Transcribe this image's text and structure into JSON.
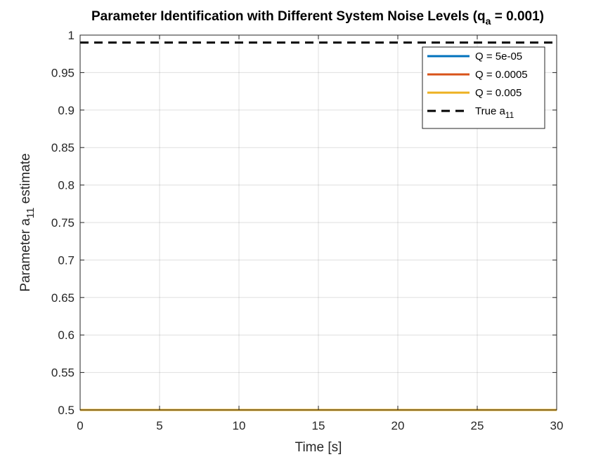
{
  "chart_data": {
    "type": "line",
    "title": "Parameter Identification with Different System Noise Levels (q",
    "title_sub": "a",
    "title_tail": " = 0.001)",
    "xlabel": "Time [s]",
    "ylabel": "Parameter a",
    "ylabel_sub": "11",
    "ylabel_tail": " estimate",
    "xlim": [
      0,
      30
    ],
    "ylim": [
      0.5,
      1
    ],
    "xticks": [
      0,
      5,
      10,
      15,
      20,
      25,
      30
    ],
    "xtick_labels": [
      "0",
      "5",
      "10",
      "15",
      "20",
      "25",
      "30"
    ],
    "yticks": [
      0.5,
      0.55,
      0.6,
      0.65,
      0.7,
      0.75,
      0.8,
      0.85,
      0.9,
      0.95,
      1
    ],
    "ytick_labels": [
      "0.5",
      "0.55",
      "0.6",
      "0.65",
      "0.7",
      "0.75",
      "0.8",
      "0.85",
      "0.9",
      "0.95",
      "1"
    ],
    "grid": true,
    "legend_position": "top-right",
    "series": [
      {
        "name": "Q = 5e-05",
        "color": "#0072BD",
        "style": "solid",
        "x": [
          0,
          30
        ],
        "y": [
          0.5,
          0.5
        ]
      },
      {
        "name": "Q = 0.0005",
        "color": "#D95319",
        "style": "solid",
        "x": [
          0,
          30
        ],
        "y": [
          0.5,
          0.5
        ]
      },
      {
        "name": "Q = 0.005",
        "color": "#EDB120",
        "style": "solid",
        "x": [
          0,
          30
        ],
        "y": [
          0.5,
          0.5
        ]
      },
      {
        "name": "True a",
        "name_sub": "11",
        "color": "#000000",
        "style": "dashed",
        "x": [
          0,
          30
        ],
        "y": [
          0.99,
          0.99
        ]
      }
    ]
  }
}
